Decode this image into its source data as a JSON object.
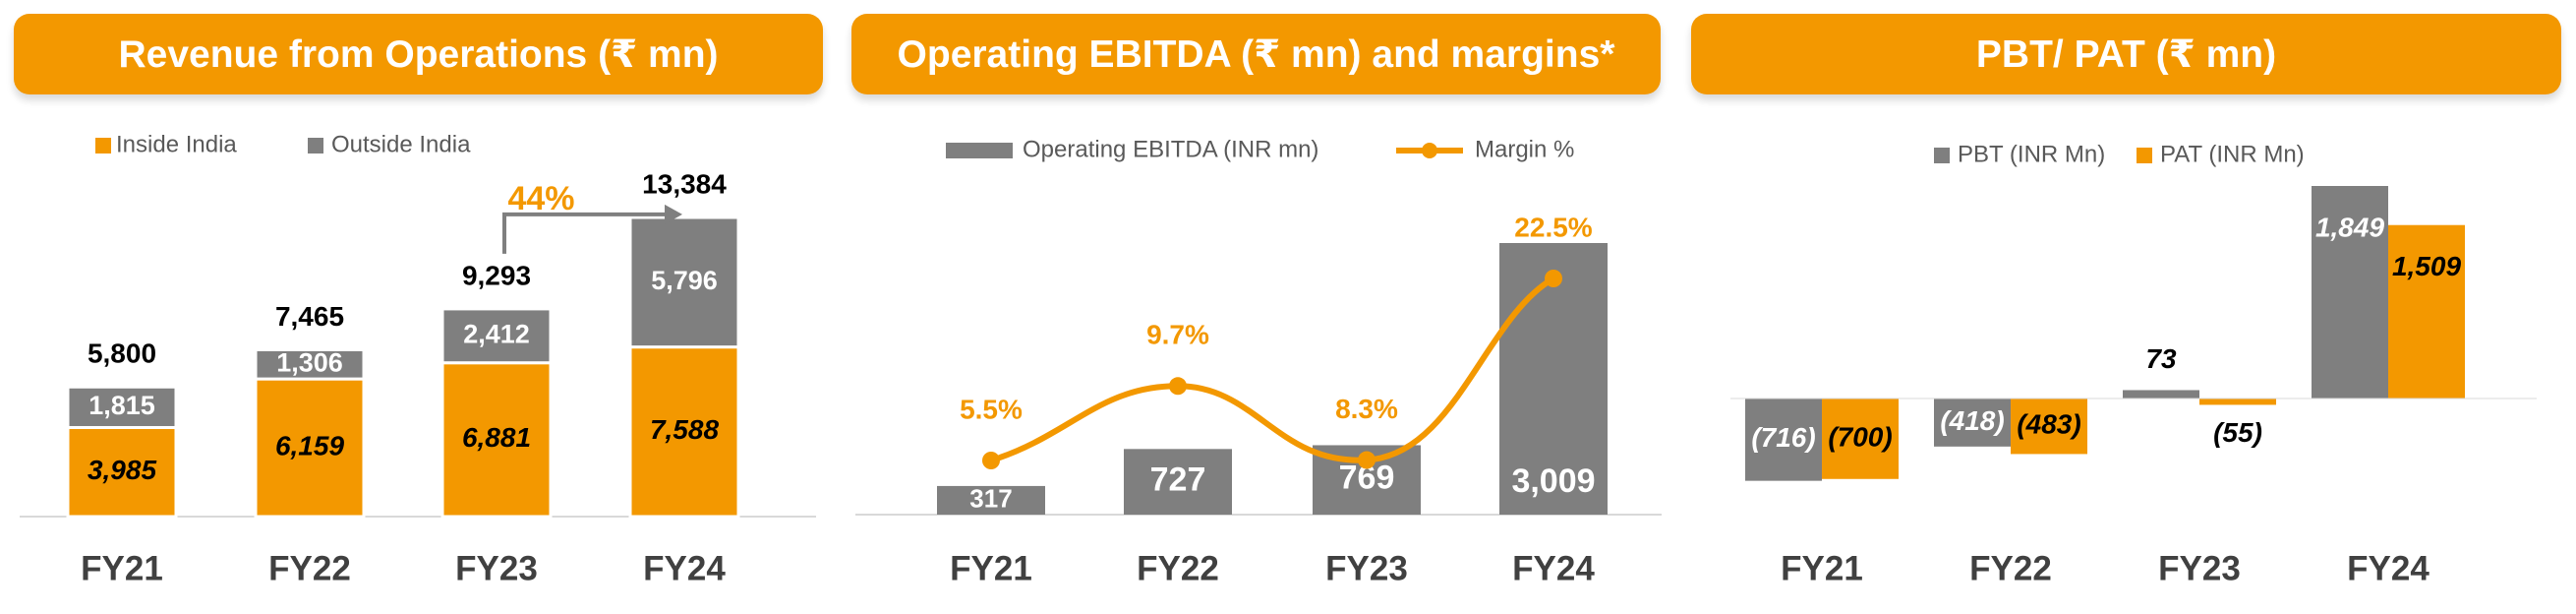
{
  "colors": {
    "orange": "#F39800",
    "gray": "#7F7F7F",
    "axis": "#D9D9D9",
    "text": "#000000",
    "label_gray": "#595959"
  },
  "panel1": {
    "title": "Revenue from Operations (₹ mn)"
  },
  "panel2": {
    "title": "Operating EBITDA (₹ mn) and margins*"
  },
  "panel3": {
    "title": "PBT/ PAT (₹ mn)"
  },
  "chart_data": [
    {
      "type": "bar",
      "stacked": true,
      "title": "Revenue from Operations (₹ mn)",
      "categories": [
        "FY21",
        "FY22",
        "FY23",
        "FY24"
      ],
      "series": [
        {
          "name": "Inside India",
          "values": [
            3985,
            6159,
            6881,
            7588
          ],
          "labels": [
            "3,985",
            "6,159",
            "6,881",
            "7,588"
          ]
        },
        {
          "name": "Outside India",
          "values": [
            1815,
            1306,
            2412,
            5796
          ],
          "labels": [
            "1,815",
            "1,306",
            "2,412",
            "5,796"
          ]
        }
      ],
      "totals": [
        "5,800",
        "7,465",
        "9,293",
        "13,384"
      ],
      "annotation": {
        "text": "44%"
      },
      "ylim": [
        0,
        14000
      ],
      "legend": "top-left"
    },
    {
      "type": "bar+line",
      "title": "Operating EBITDA (₹ mn) and margins*",
      "categories": [
        "FY21",
        "FY22",
        "FY23",
        "FY24"
      ],
      "bars": {
        "name": "Operating EBITDA (INR mn)",
        "values": [
          317,
          727,
          769,
          3009
        ],
        "labels": [
          "317",
          "727",
          "769",
          "3,009"
        ]
      },
      "line": {
        "name": "Margin %",
        "values": [
          5.5,
          9.7,
          8.3,
          22.5
        ],
        "labels": [
          "5.5%",
          "9.7%",
          "8.3%",
          "22.5%"
        ]
      },
      "ylim": [
        0,
        3100
      ],
      "legend": "top"
    },
    {
      "type": "bar",
      "grouped": true,
      "title": "PBT/ PAT (₹ mn)",
      "categories": [
        "FY21",
        "FY22",
        "FY23",
        "FY24"
      ],
      "series": [
        {
          "name": "PBT (INR Mn)",
          "values": [
            -716,
            -418,
            73,
            1849
          ],
          "labels": [
            "(716)",
            "(418)",
            "73",
            "1,849"
          ]
        },
        {
          "name": "PAT (INR Mn)",
          "values": [
            -700,
            -483,
            -55,
            1509
          ],
          "labels": [
            "(700)",
            "(483)",
            "(55)",
            "1,509"
          ]
        }
      ],
      "ylim": [
        -750,
        1950
      ],
      "legend": "top"
    }
  ]
}
